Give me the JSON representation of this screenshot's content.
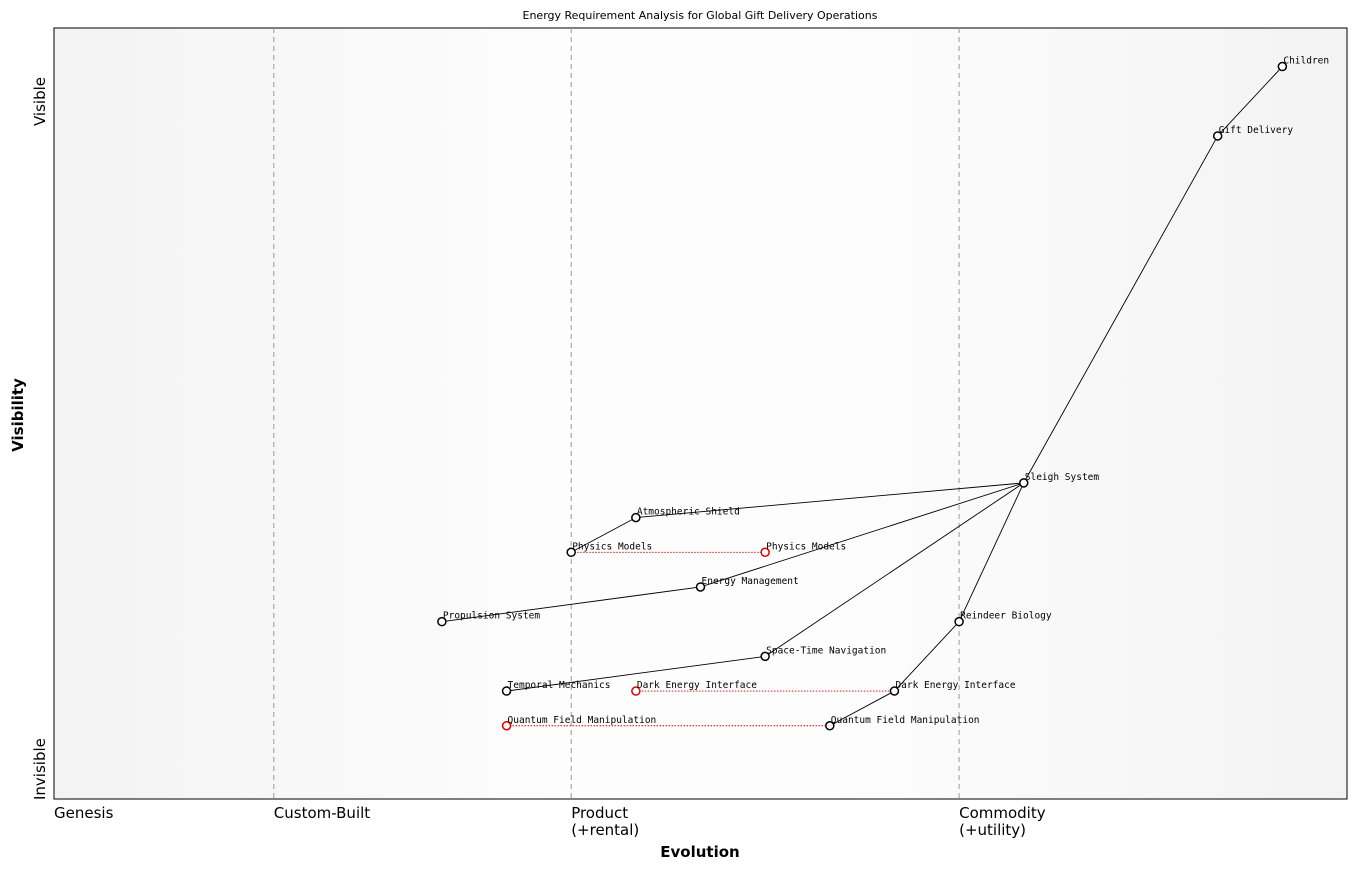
{
  "title": "Energy Requirement Analysis for Global Gift Delivery Operations",
  "axes": {
    "x_title": "Evolution",
    "y_title": "Visibility",
    "y_top_label": "Visible",
    "y_bottom_label": "Invisible"
  },
  "stages": [
    {
      "label": "Genesis",
      "sub": "",
      "boundary": 0.0
    },
    {
      "label": "Custom-Built",
      "sub": "",
      "boundary": 0.17
    },
    {
      "label": "Product",
      "sub": "(+rental)",
      "boundary": 0.4
    },
    {
      "label": "Commodity",
      "sub": "(+utility)",
      "boundary": 0.7
    }
  ],
  "components": [
    {
      "id": "children",
      "label": "Children",
      "evolution": 0.95,
      "visibility": 0.95,
      "kind": "component"
    },
    {
      "id": "gift-delivery",
      "label": "Gift Delivery",
      "evolution": 0.9,
      "visibility": 0.86,
      "kind": "component"
    },
    {
      "id": "sleigh-system",
      "label": "Sleigh System",
      "evolution": 0.75,
      "visibility": 0.41,
      "kind": "component"
    },
    {
      "id": "atmospheric-shield",
      "label": "Atmospheric Shield",
      "evolution": 0.45,
      "visibility": 0.365,
      "kind": "component"
    },
    {
      "id": "physics-models",
      "label": "Physics Models",
      "evolution": 0.4,
      "visibility": 0.32,
      "kind": "component"
    },
    {
      "id": "physics-models-future",
      "label": "Physics Models",
      "evolution": 0.55,
      "visibility": 0.32,
      "kind": "evolving"
    },
    {
      "id": "energy-management",
      "label": "Energy Management",
      "evolution": 0.5,
      "visibility": 0.275,
      "kind": "component"
    },
    {
      "id": "propulsion-system",
      "label": "Propulsion System",
      "evolution": 0.3,
      "visibility": 0.23,
      "kind": "component"
    },
    {
      "id": "reindeer-biology",
      "label": "Reindeer Biology",
      "evolution": 0.7,
      "visibility": 0.23,
      "kind": "component"
    },
    {
      "id": "space-time-navigation",
      "label": "Space-Time Navigation",
      "evolution": 0.55,
      "visibility": 0.185,
      "kind": "component"
    },
    {
      "id": "temporal-mechanics",
      "label": "Temporal Mechanics",
      "evolution": 0.35,
      "visibility": 0.14,
      "kind": "component"
    },
    {
      "id": "dark-energy-interface-past",
      "label": "Dark Energy Interface",
      "evolution": 0.45,
      "visibility": 0.14,
      "kind": "evolving"
    },
    {
      "id": "dark-energy-interface",
      "label": "Dark Energy Interface",
      "evolution": 0.65,
      "visibility": 0.14,
      "kind": "component"
    },
    {
      "id": "quantum-field-manipulation-past",
      "label": "Quantum Field Manipulation",
      "evolution": 0.35,
      "visibility": 0.095,
      "kind": "evolving"
    },
    {
      "id": "quantum-field-manipulation",
      "label": "Quantum Field Manipulation",
      "evolution": 0.6,
      "visibility": 0.095,
      "kind": "component"
    }
  ],
  "links": [
    [
      "children",
      "gift-delivery"
    ],
    [
      "gift-delivery",
      "sleigh-system"
    ],
    [
      "sleigh-system",
      "atmospheric-shield"
    ],
    [
      "atmospheric-shield",
      "physics-models"
    ],
    [
      "sleigh-system",
      "energy-management"
    ],
    [
      "energy-management",
      "propulsion-system"
    ],
    [
      "sleigh-system",
      "space-time-navigation"
    ],
    [
      "space-time-navigation",
      "temporal-mechanics"
    ],
    [
      "sleigh-system",
      "reindeer-biology"
    ],
    [
      "reindeer-biology",
      "dark-energy-interface"
    ],
    [
      "dark-energy-interface",
      "quantum-field-manipulation"
    ]
  ],
  "evolution_links": [
    [
      "physics-models",
      "physics-models-future"
    ],
    [
      "dark-energy-interface-past",
      "dark-energy-interface"
    ],
    [
      "quantum-field-manipulation-past",
      "quantum-field-manipulation"
    ]
  ],
  "colors": {
    "component_stroke": "#000000",
    "evolving_stroke": "#dd0000",
    "evolution_link": "#dd0000",
    "boundary": "#999999"
  }
}
